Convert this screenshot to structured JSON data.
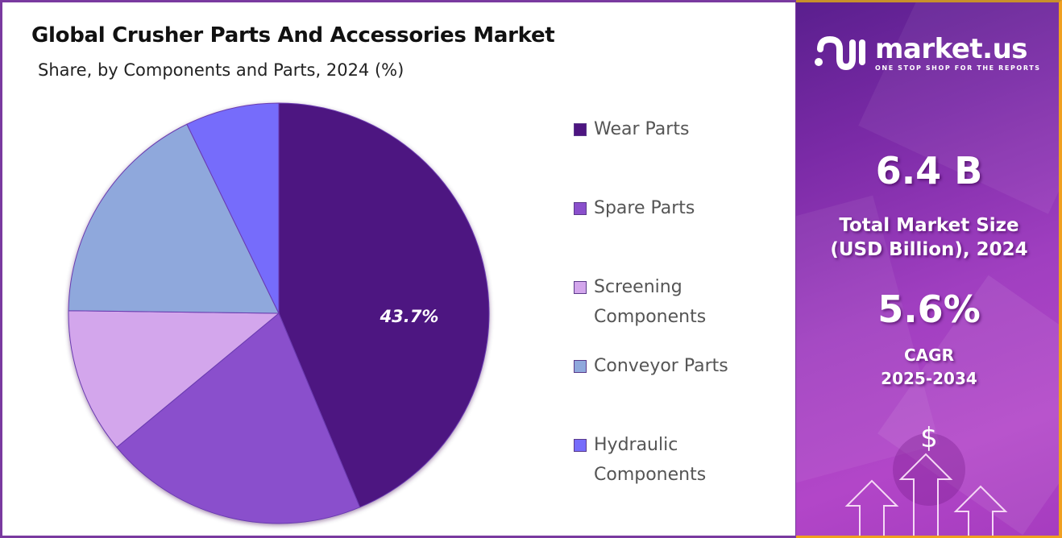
{
  "header": {
    "title": "Global Crusher Parts And Accessories Market",
    "subtitle": "Share, by Components and Parts, 2024 (%)"
  },
  "chart_data": {
    "type": "pie",
    "title": "Global Crusher Parts And Accessories Market",
    "subtitle": "Share, by Components and Parts, 2024 (%)",
    "categories": [
      "Wear Parts",
      "Spare Parts",
      "Screening Components",
      "Conveyor Parts",
      "Hydraulic Components"
    ],
    "values": [
      43.7,
      20.3,
      11.2,
      17.6,
      7.2
    ],
    "colors": [
      "#4e1581",
      "#8a4fcc",
      "#d3a6ec",
      "#8fa8dc",
      "#766cfb"
    ],
    "data_labels": [
      "43.7%",
      "",
      "",
      "",
      ""
    ],
    "start_angle": "top, clockwise",
    "legend_position": "right"
  },
  "legend": {
    "items": [
      {
        "label_lines": [
          "Wear Parts"
        ],
        "color": "#4e1581"
      },
      {
        "label_lines": [
          "Spare Parts"
        ],
        "color": "#8a4fcc"
      },
      {
        "label_lines": [
          "Screening",
          "Components"
        ],
        "color": "#d3a6ec"
      },
      {
        "label_lines": [
          "Conveyor Parts"
        ],
        "color": "#8fa8dc"
      },
      {
        "label_lines": [
          "Hydraulic",
          "Components"
        ],
        "color": "#766cfb"
      }
    ]
  },
  "pie_label": "43.7%",
  "sidebar": {
    "brand": "market.us",
    "tagline": "ONE STOP SHOP FOR THE REPORTS",
    "market_size_value": "6.4 B",
    "market_size_label_1": "Total Market Size",
    "market_size_label_2": "(USD Billion), 2024",
    "cagr_value": "5.6%",
    "cagr_label_1": "CAGR",
    "cagr_label_2": "2025-2034",
    "dollar_icon": "$"
  }
}
